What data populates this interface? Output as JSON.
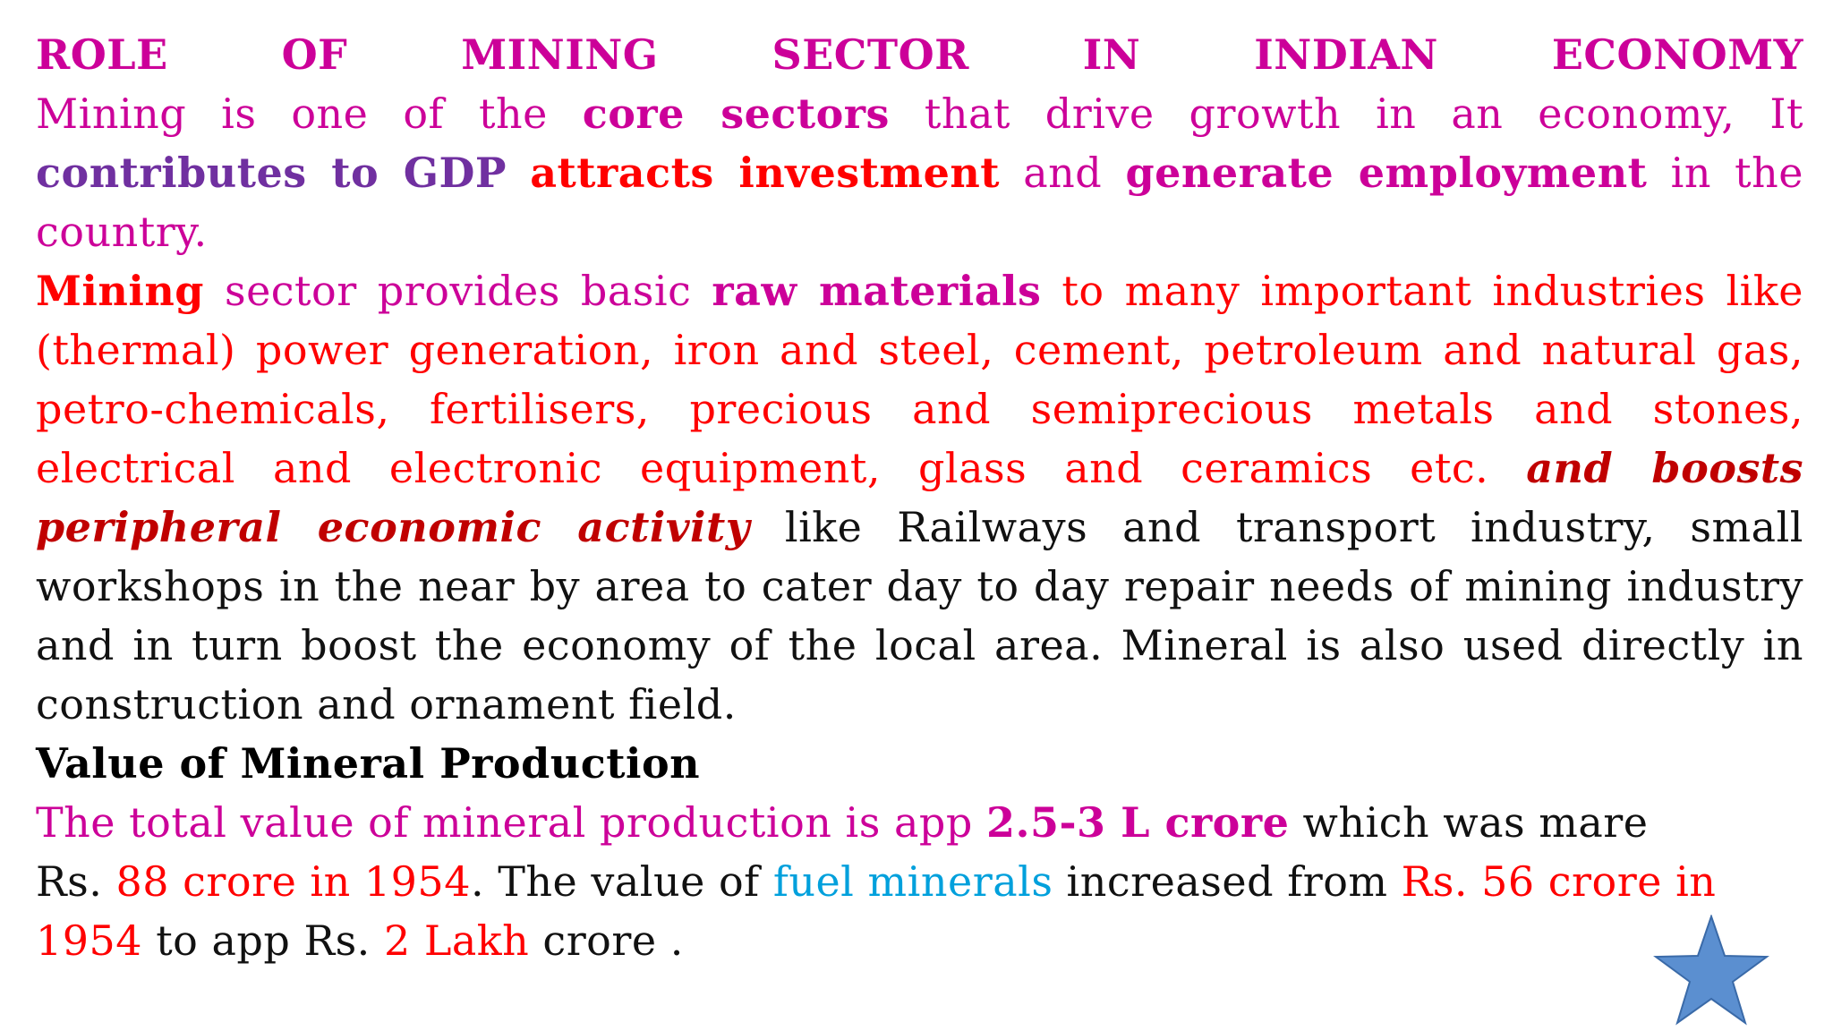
{
  "title_words": [
    "ROLE",
    "OF",
    "MINING",
    "SECTOR",
    "IN",
    "INDIAN",
    "ECONOMY"
  ],
  "para1": {
    "t1": "Mining is one of the ",
    "t2": "core sectors",
    "t3": " that drive growth in an economy, It ",
    "t4": "contributes to GDP",
    "t5": " ",
    "t6": "attracts investment",
    "t7": " and ",
    "t8": "generate employment",
    "t9": " in the country."
  },
  "para2": {
    "t1": "Mining",
    "t2": " sector provides basic ",
    "t3": "raw materials",
    "t4": " to many important industries like (thermal) power generation, iron and steel, cement, petroleum and natural gas, petro-chemicals, fertilisers, precious and semiprecious metals and stones, electrical and electronic equipment, glass and ceramics etc. ",
    "t5": "and boosts peripheral economic activity",
    "t6": " like Railways and transport industry, small workshops in the near by area to cater day to day repair needs of mining industry and in turn boost the economy of the local area. Mineral is also used directly in construction and ornament field."
  },
  "heading": "Value of Mineral Production",
  "para3": {
    "t1": "The total value of mineral production is app ",
    "t2": "2.5-3 L crore",
    "t3": " which was mare",
    "t4": "Rs. ",
    "t5": "88 crore in 1954",
    "t6": ". The value of ",
    "t7": "fuel minerals",
    "t8": " increased from ",
    "t9": "Rs. 56 crore in 1954",
    "t10": " to app Rs. ",
    "t11": "2 Lakh",
    "t12": " crore ."
  },
  "star": {
    "icon": "star-icon",
    "fill": "#5b8fd0",
    "stroke": "#3a6aa8"
  }
}
